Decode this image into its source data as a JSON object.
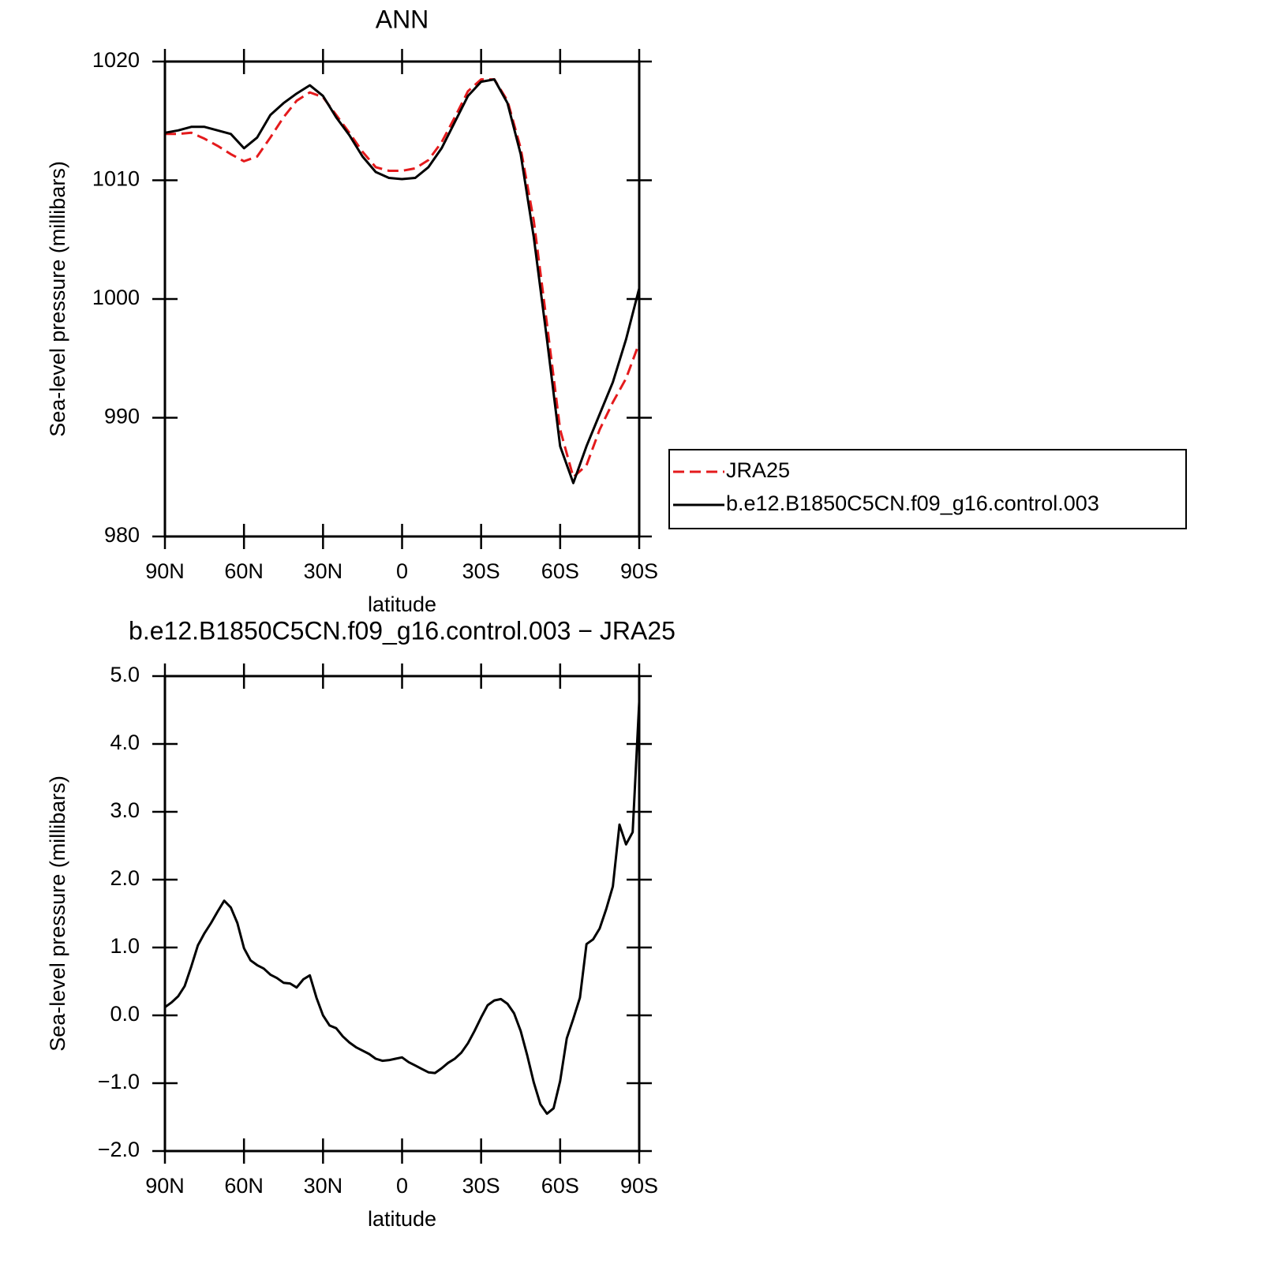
{
  "chart_data": [
    {
      "type": "line",
      "title": "ANN",
      "xlabel": "latitude",
      "ylabel": "Sea-level pressure (millibars)",
      "x": [
        90,
        85,
        80,
        75,
        70,
        65,
        60,
        55,
        50,
        45,
        40,
        35,
        30,
        25,
        20,
        15,
        10,
        5,
        0,
        -5,
        -10,
        -15,
        -20,
        -25,
        -30,
        -35,
        -40,
        -45,
        -50,
        -55,
        -60,
        -65,
        -70,
        -75,
        -80,
        -85,
        -90
      ],
      "series": [
        {
          "name": "JRA25",
          "color": "#e41a1c",
          "line_style": "dashed",
          "values": [
            1013.9,
            1013.9,
            1014.0,
            1013.5,
            1012.9,
            1012.2,
            1011.6,
            1012.0,
            1013.6,
            1015.3,
            1016.7,
            1017.4,
            1017.0,
            1015.5,
            1014.0,
            1012.4,
            1011.1,
            1010.8,
            1010.8,
            1011.0,
            1011.7,
            1013.2,
            1015.3,
            1017.5,
            1018.5,
            1018.5,
            1016.7,
            1012.7,
            1006.6,
            997.9,
            989.0,
            985.0,
            986.0,
            989.0,
            991.3,
            993.3,
            996.3
          ]
        },
        {
          "name": "b.e12.B1850C5CN.f09_g16.control.003",
          "color": "#000000",
          "line_style": "solid",
          "values": [
            1014.0,
            1014.2,
            1014.5,
            1014.5,
            1014.2,
            1013.9,
            1012.7,
            1013.6,
            1015.5,
            1016.5,
            1017.3,
            1018.0,
            1017.1,
            1015.3,
            1013.8,
            1012.0,
            1010.7,
            1010.2,
            1010.1,
            1010.2,
            1011.1,
            1012.7,
            1014.9,
            1017.1,
            1018.3,
            1018.5,
            1016.5,
            1012.2,
            1005.2,
            996.6,
            987.6,
            984.5,
            987.6,
            990.3,
            993.0,
            996.6,
            1000.9
          ]
        }
      ],
      "xlim": [
        90,
        -90
      ],
      "xticks": [
        {
          "value": 90,
          "label": "90N"
        },
        {
          "value": 60,
          "label": "60N"
        },
        {
          "value": 30,
          "label": "30N"
        },
        0,
        {
          "value": -30,
          "label": "30S"
        },
        {
          "value": -60,
          "label": "60S"
        },
        {
          "value": -90,
          "label": "90S"
        }
      ],
      "ylim": [
        980,
        1020
      ],
      "yticks": [
        980,
        990,
        1000,
        1010,
        1020
      ],
      "legend": "right"
    },
    {
      "type": "line",
      "title": "b.e12.B1850C5CN.f09_g16.control.003 − JRA25",
      "xlabel": "latitude",
      "ylabel": "Sea-level pressure (millibars)",
      "x": [
        90,
        87.5,
        85,
        82.5,
        80,
        77.5,
        75,
        72.5,
        70,
        67.5,
        65,
        62.5,
        60,
        57.5,
        55,
        52.5,
        50,
        47.5,
        45,
        42.5,
        40,
        37.5,
        35,
        32.5,
        30,
        27.5,
        25,
        22.5,
        20,
        17.5,
        15,
        12.5,
        10,
        7.5,
        5,
        2.5,
        0,
        -2.5,
        -5,
        -7.5,
        -10,
        -12.5,
        -15,
        -17.5,
        -20,
        -22.5,
        -25,
        -27.5,
        -30,
        -32.5,
        -35,
        -37.5,
        -40,
        -42.5,
        -45,
        -47.5,
        -50,
        -52.5,
        -55,
        -57.5,
        -60,
        -62.5,
        -65,
        -67.5,
        -70,
        -72.5,
        -75,
        -77.5,
        -80,
        -82.5,
        -85,
        -87.5,
        -90
      ],
      "values": [
        0.12,
        0.19,
        0.28,
        0.43,
        0.72,
        1.03,
        1.21,
        1.36,
        1.53,
        1.69,
        1.59,
        1.36,
        0.99,
        0.81,
        0.74,
        0.69,
        0.6,
        0.55,
        0.48,
        0.47,
        0.41,
        0.53,
        0.59,
        0.26,
        0.0,
        -0.15,
        -0.19,
        -0.31,
        -0.4,
        -0.47,
        -0.52,
        -0.57,
        -0.64,
        -0.67,
        -0.66,
        -0.64,
        -0.62,
        -0.69,
        -0.74,
        -0.79,
        -0.84,
        -0.85,
        -0.78,
        -0.7,
        -0.64,
        -0.55,
        -0.41,
        -0.23,
        -0.03,
        0.15,
        0.22,
        0.24,
        0.17,
        0.03,
        -0.23,
        -0.59,
        -0.99,
        -1.31,
        -1.45,
        -1.37,
        -0.97,
        -0.34,
        -0.05,
        0.26,
        1.05,
        1.12,
        1.28,
        1.57,
        1.9,
        2.81,
        2.52,
        2.7,
        4.62
      ],
      "color": "#000000",
      "xlim": [
        90,
        -90
      ],
      "xticks": [
        {
          "value": 90,
          "label": "90N"
        },
        {
          "value": 60,
          "label": "60N"
        },
        {
          "value": 30,
          "label": "30N"
        },
        0,
        {
          "value": -30,
          "label": "30S"
        },
        {
          "value": -60,
          "label": "60S"
        },
        {
          "value": -90,
          "label": "90S"
        }
      ],
      "ylim": [
        -2,
        5
      ],
      "yticks": [
        {
          "value": -2,
          "label": "−2.0"
        },
        {
          "value": -1,
          "label": "−1.0"
        },
        {
          "value": 0,
          "label": "0.0"
        },
        {
          "value": 1,
          "label": "1.0"
        },
        {
          "value": 2,
          "label": "2.0"
        },
        {
          "value": 3,
          "label": "3.0"
        },
        {
          "value": 4,
          "label": "4.0"
        },
        {
          "value": 5,
          "label": "5.0"
        }
      ]
    }
  ]
}
